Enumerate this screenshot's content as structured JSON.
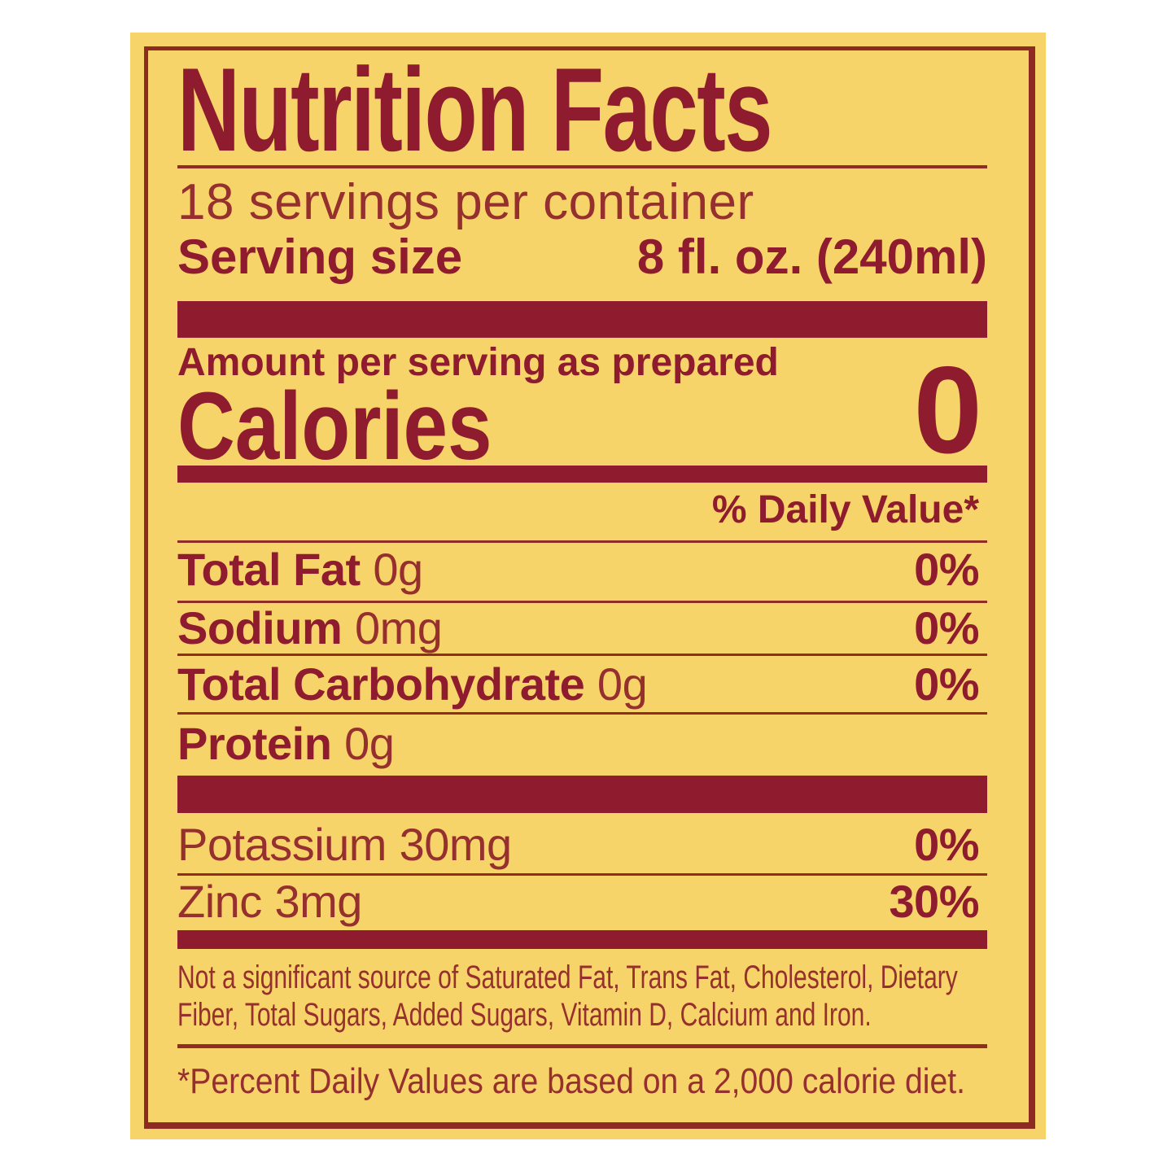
{
  "colors": {
    "page_background": "#ffffff",
    "label_background": "#f7d46a",
    "accent_red": "#8e1c2e",
    "regular_text_red": "#96302e",
    "rule_red": "#8f2d23",
    "frame_red": "#8d2a22"
  },
  "label": {
    "title": "Nutrition Facts",
    "servings_per_container": "18 servings per container",
    "serving_size": {
      "label": "Serving size",
      "value": "8 fl. oz. (240ml)"
    },
    "amount_per_serving": "Amount per serving as prepared",
    "calories": {
      "label": "Calories",
      "value": "0"
    },
    "daily_value_header": "% Daily Value*",
    "nutrients": [
      {
        "name": "Total Fat",
        "amount": "0g",
        "daily_value": "0%"
      },
      {
        "name": "Sodium",
        "amount": "0mg",
        "daily_value": "0%"
      },
      {
        "name": "Total Carbohydrate",
        "amount": "0g",
        "daily_value": "0%"
      },
      {
        "name": "Protein",
        "amount": "0g",
        "daily_value": ""
      }
    ],
    "minerals": [
      {
        "name": "Potassium",
        "amount": "30mg",
        "daily_value": "0%"
      },
      {
        "name": "Zinc",
        "amount": "3mg",
        "daily_value": "30%"
      }
    ],
    "disclaimer": "Not a significant source of Saturated Fat, Trans Fat, Cholesterol, Dietary Fiber, Total Sugars, Added Sugars, Vitamin D, Calcium and Iron.",
    "footnote": "*Percent Daily Values are based on a 2,000 calorie diet."
  }
}
